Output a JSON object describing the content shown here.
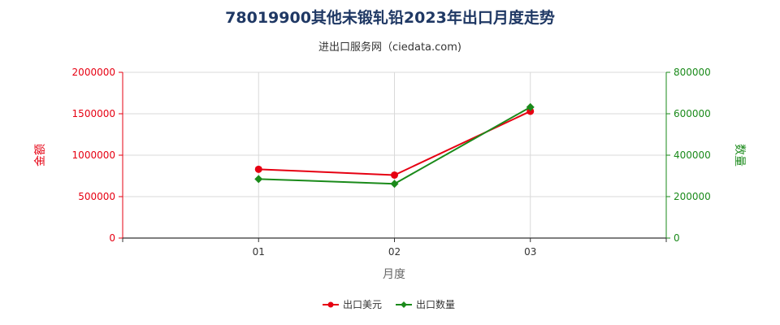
{
  "chart_data": {
    "type": "line",
    "title": "78019900其他未锻轧铅2023年出口月度走势",
    "subtitle": "进出口服务网（ciedata.com)",
    "xlabel": "月度",
    "ylabel_left": "金额",
    "ylabel_right": "数量",
    "categories": [
      "01",
      "02",
      "03"
    ],
    "y_left": {
      "ylim": [
        0,
        2000000
      ],
      "ticks": [
        "0",
        "500000",
        "1000000",
        "1500000",
        "2000000"
      ]
    },
    "y_right": {
      "ylim": [
        0,
        800000
      ],
      "ticks": [
        "0",
        "200000",
        "400000",
        "600000",
        "800000"
      ]
    },
    "grid": true,
    "legend_position": "bottom",
    "series": [
      {
        "name": "出口美元",
        "axis": "left",
        "color": "#e60012",
        "marker": "circle",
        "values": [
          830000,
          760000,
          1530000
        ]
      },
      {
        "name": "出口数量",
        "axis": "right",
        "color": "#1a8a1a",
        "marker": "diamond",
        "values": [
          285000,
          262000,
          632000
        ]
      }
    ]
  }
}
